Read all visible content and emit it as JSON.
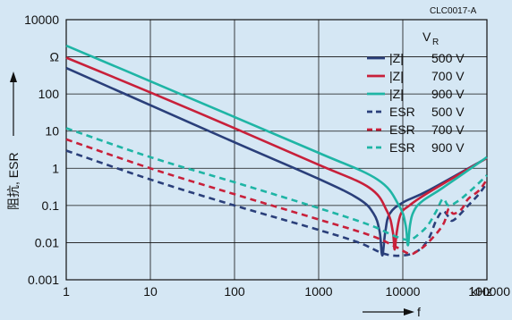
{
  "chart_data": {
    "type": "line",
    "code": "CLC0017-A",
    "ylabel": "阻抗, ESR",
    "yunit": "Ω",
    "xlabel": "f",
    "xunit": "kHz",
    "xscale": "log",
    "yscale": "log",
    "xlim": [
      1,
      100000
    ],
    "ylim": [
      0.001,
      10000
    ],
    "x_ticks": [
      1,
      10,
      100,
      1000,
      10000,
      100000
    ],
    "x_tick_labels": [
      "1",
      "10",
      "100",
      "1000",
      "10000",
      "100000"
    ],
    "y_ticks": [
      0.001,
      0.01,
      0.1,
      1,
      10,
      100,
      1000,
      10000
    ],
    "y_tick_labels": [
      "0.001",
      "0.01",
      "0.1",
      "1",
      "10",
      "100",
      "Ω",
      "10000"
    ],
    "grid": true,
    "legend_title": "V",
    "legend_title_sub": "R",
    "legend_position": "top-right",
    "colors": {
      "500 V": "#2a3f7a",
      "700 V": "#c8203a",
      "900 V": "#1fb5a5"
    },
    "series": [
      {
        "name": "|Z|",
        "voltage": "500 V",
        "style": "solid",
        "color": "#2a3f7a",
        "points": [
          [
            1,
            500
          ],
          [
            10,
            50
          ],
          [
            100,
            5
          ],
          [
            1000,
            0.52
          ],
          [
            3000,
            0.15
          ],
          [
            4500,
            0.06
          ],
          [
            5300,
            0.02
          ],
          [
            5700,
            0.0045
          ],
          [
            6200,
            0.02
          ],
          [
            7000,
            0.06
          ],
          [
            10000,
            0.12
          ],
          [
            20000,
            0.25
          ],
          [
            100000,
            1.9
          ]
        ]
      },
      {
        "name": "|Z|",
        "voltage": "700 V",
        "style": "solid",
        "color": "#c8203a",
        "points": [
          [
            1,
            950
          ],
          [
            10,
            110
          ],
          [
            100,
            12
          ],
          [
            1000,
            1.25
          ],
          [
            4000,
            0.3
          ],
          [
            6500,
            0.07
          ],
          [
            7600,
            0.02
          ],
          [
            8000,
            0.0065
          ],
          [
            8500,
            0.02
          ],
          [
            9500,
            0.06
          ],
          [
            12000,
            0.1
          ],
          [
            20000,
            0.22
          ],
          [
            100000,
            1.9
          ]
        ]
      },
      {
        "name": "|Z|",
        "voltage": "900 V",
        "style": "solid",
        "color": "#1fb5a5",
        "points": [
          [
            1,
            2000
          ],
          [
            10,
            220
          ],
          [
            100,
            24
          ],
          [
            1000,
            2.6
          ],
          [
            5000,
            0.5
          ],
          [
            9000,
            0.1
          ],
          [
            10800,
            0.03
          ],
          [
            11500,
            0.0085
          ],
          [
            12200,
            0.03
          ],
          [
            13500,
            0.07
          ],
          [
            17000,
            0.13
          ],
          [
            30000,
            0.3
          ],
          [
            100000,
            2.0
          ]
        ]
      },
      {
        "name": "ESR",
        "voltage": "500 V",
        "style": "dashed",
        "color": "#2a3f7a",
        "points": [
          [
            1,
            3
          ],
          [
            10,
            0.5
          ],
          [
            100,
            0.1
          ],
          [
            1000,
            0.022
          ],
          [
            3000,
            0.01
          ],
          [
            6000,
            0.005
          ],
          [
            10000,
            0.0045
          ],
          [
            15000,
            0.006
          ],
          [
            20000,
            0.012
          ],
          [
            25000,
            0.04
          ],
          [
            30000,
            0.07
          ],
          [
            35000,
            0.05
          ],
          [
            40000,
            0.04
          ],
          [
            60000,
            0.1
          ],
          [
            80000,
            0.2
          ],
          [
            100000,
            0.4
          ]
        ]
      },
      {
        "name": "ESR",
        "voltage": "700 V",
        "style": "dashed",
        "color": "#c8203a",
        "points": [
          [
            1,
            6
          ],
          [
            10,
            1.0
          ],
          [
            100,
            0.2
          ],
          [
            1000,
            0.042
          ],
          [
            4000,
            0.016
          ],
          [
            8000,
            0.008
          ],
          [
            12000,
            0.005
          ],
          [
            15000,
            0.006
          ],
          [
            20000,
            0.01
          ],
          [
            30000,
            0.03
          ],
          [
            35000,
            0.08
          ],
          [
            40000,
            0.06
          ],
          [
            50000,
            0.08
          ],
          [
            60000,
            0.15
          ],
          [
            80000,
            0.25
          ],
          [
            100000,
            0.5
          ]
        ]
      },
      {
        "name": "ESR",
        "voltage": "900 V",
        "style": "dashed",
        "color": "#1fb5a5",
        "points": [
          [
            1,
            12
          ],
          [
            10,
            2
          ],
          [
            100,
            0.42
          ],
          [
            1000,
            0.085
          ],
          [
            4000,
            0.03
          ],
          [
            8000,
            0.015
          ],
          [
            12000,
            0.012
          ],
          [
            16000,
            0.018
          ],
          [
            20000,
            0.03
          ],
          [
            25000,
            0.07
          ],
          [
            30000,
            0.15
          ],
          [
            35000,
            0.1
          ],
          [
            45000,
            0.13
          ],
          [
            60000,
            0.22
          ],
          [
            80000,
            0.4
          ],
          [
            100000,
            0.65
          ]
        ]
      }
    ],
    "legend": [
      {
        "label": "|Z|",
        "voltage": "500 V",
        "style": "solid",
        "color": "#2a3f7a"
      },
      {
        "label": "|Z|",
        "voltage": "700 V",
        "style": "solid",
        "color": "#c8203a"
      },
      {
        "label": "|Z|",
        "voltage": "900 V",
        "style": "solid",
        "color": "#1fb5a5"
      },
      {
        "label": "ESR",
        "voltage": "500 V",
        "style": "dashed",
        "color": "#2a3f7a"
      },
      {
        "label": "ESR",
        "voltage": "700 V",
        "style": "dashed",
        "color": "#c8203a"
      },
      {
        "label": "ESR",
        "voltage": "900 V",
        "style": "dashed",
        "color": "#1fb5a5"
      }
    ]
  }
}
